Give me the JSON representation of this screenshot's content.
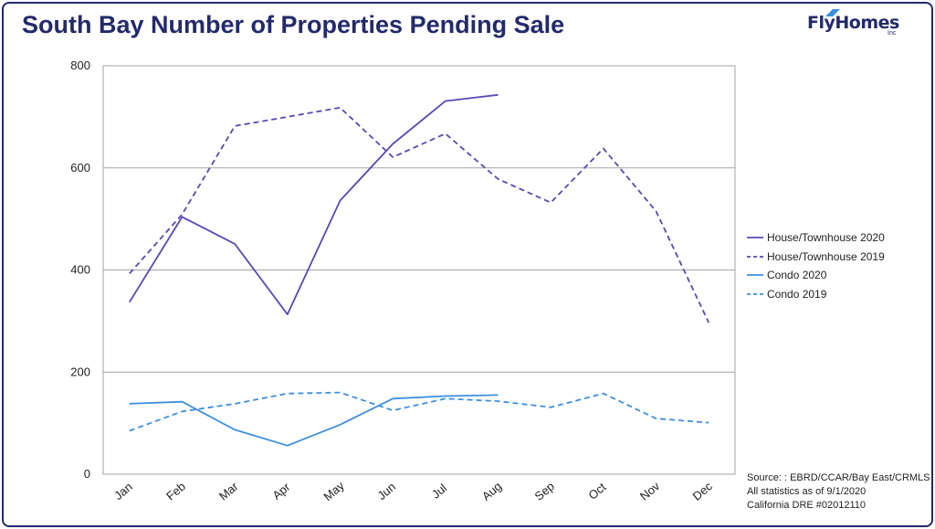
{
  "header": {
    "title": "South Bay Number of Properties Pending Sale"
  },
  "logo": {
    "text": "FlyHomes",
    "sub": "Inc"
  },
  "source": {
    "line1": "Source: : EBRD/CCAR/Bay East/CRMLS",
    "line2": "All statistics as of 9/1/2020",
    "line3": "California DRE #02012110"
  },
  "colors": {
    "house": "#5b46b8",
    "condo": "#3d8fe0",
    "grid": "#a3a3a3",
    "title": "#232a6b"
  },
  "chart_data": {
    "type": "line",
    "title": "South Bay Number of Properties Pending Sale",
    "xlabel": "",
    "ylabel": "",
    "categories": [
      "Jan",
      "Feb",
      "Mar",
      "Apr",
      "May",
      "Jun",
      "Jul",
      "Aug",
      "Sep",
      "Oct",
      "Nov",
      "Dec"
    ],
    "ylim": [
      0,
      800
    ],
    "yticks": [
      0,
      200,
      400,
      600,
      800
    ],
    "grid": true,
    "legend_position": "right",
    "series": [
      {
        "name": "House/Townhouse 2020",
        "color": "#5b46b8",
        "dashed": false,
        "values": [
          337,
          504,
          451,
          313,
          536,
          647,
          731,
          743,
          null,
          null,
          null,
          null
        ]
      },
      {
        "name": "House/Townhouse 2019",
        "color": "#5b46b8",
        "dashed": true,
        "values": [
          393,
          509,
          682,
          700,
          718,
          621,
          667,
          578,
          532,
          638,
          515,
          297
        ]
      },
      {
        "name": "Condo 2020",
        "color": "#3d8fe0",
        "dashed": false,
        "values": [
          138,
          142,
          87,
          56,
          97,
          148,
          153,
          155,
          null,
          null,
          null,
          null
        ]
      },
      {
        "name": "Condo 2019",
        "color": "#3d8fe0",
        "dashed": true,
        "values": [
          85,
          123,
          138,
          158,
          160,
          125,
          148,
          143,
          131,
          158,
          109,
          101
        ]
      }
    ]
  }
}
